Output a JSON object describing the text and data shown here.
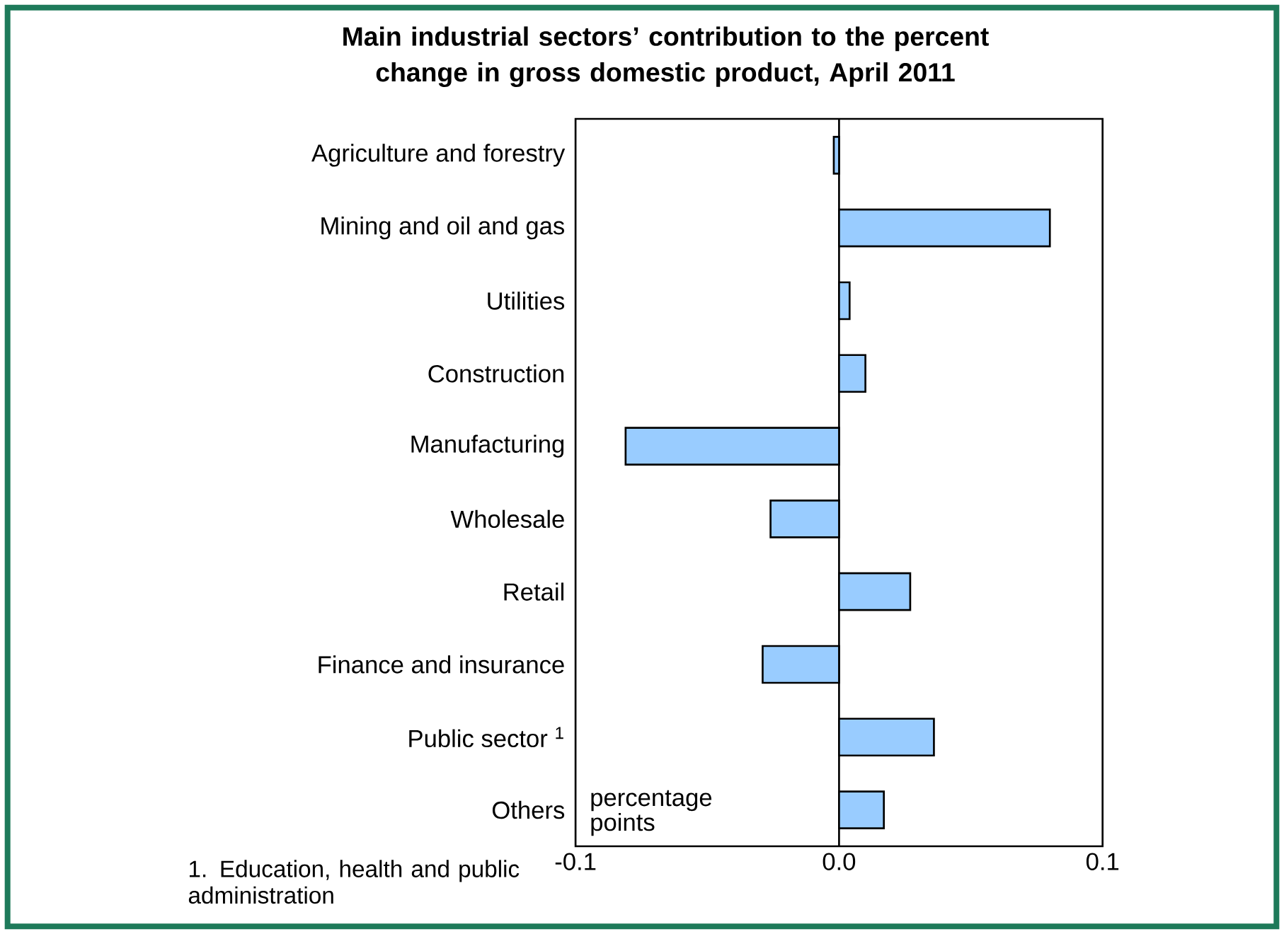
{
  "chart_data": {
    "type": "bar",
    "orientation": "horizontal",
    "title": "Main industrial sectors’ contribution to the percent change in gross domestic product, April 2011",
    "categories": [
      "Agriculture and forestry",
      "Mining and oil and gas",
      "Utilities",
      "Construction",
      "Manufacturing",
      "Wholesale",
      "Retail",
      "Finance and insurance",
      "Public sector $^{1}$",
      "Others"
    ],
    "values": [
      -0.002,
      0.08,
      0.004,
      0.01,
      -0.081,
      -0.026,
      0.027,
      -0.029,
      0.036,
      0.017
    ],
    "color": "#99ccff",
    "xlabel": "percentage points",
    "xlim": [
      -0.1,
      0.1
    ],
    "xticks": [
      -0.1,
      {
        "value": 0,
        "label": "0.0"
      },
      0.1
    ],
    "annotations": [
      "1. Education, health and public administration"
    ]
  }
}
